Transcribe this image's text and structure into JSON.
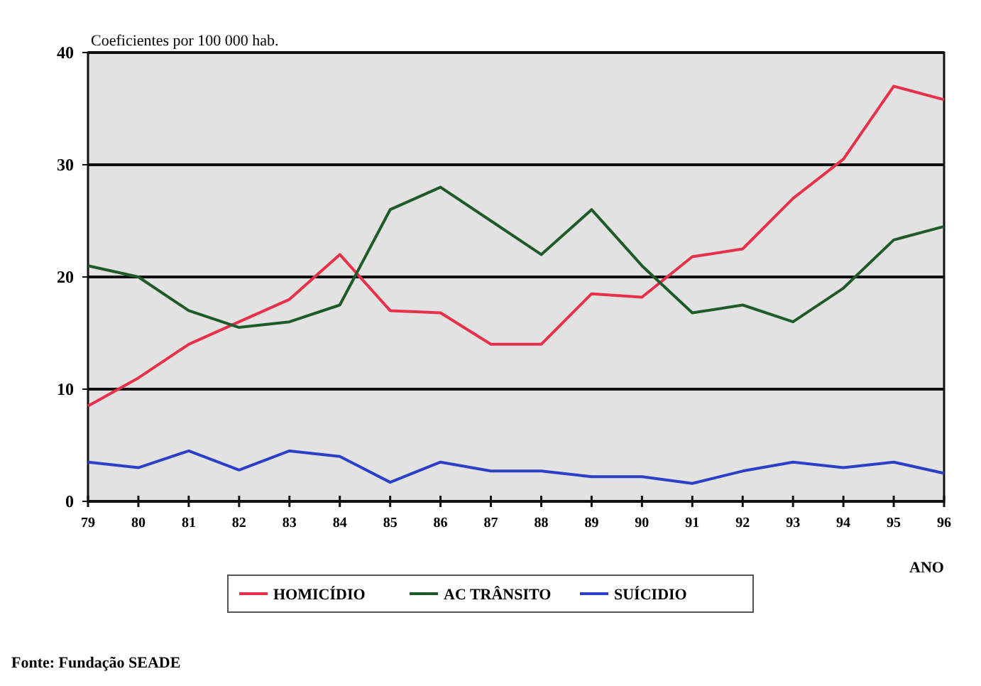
{
  "chart_data": {
    "type": "line",
    "ylabel": "Coeficientes por 100 000 hab.",
    "xlabel": "ANO",
    "categories": [
      "79",
      "80",
      "81",
      "82",
      "83",
      "84",
      "85",
      "86",
      "87",
      "88",
      "89",
      "90",
      "91",
      "92",
      "93",
      "94",
      "95",
      "96"
    ],
    "series": [
      {
        "name": "HOMICÍDIO",
        "color": "#e8304a",
        "values": [
          8.5,
          11,
          14,
          16,
          18,
          22,
          17,
          16.8,
          14,
          14,
          18.5,
          18.2,
          21.8,
          22.5,
          27,
          30.5,
          37,
          35.8
        ]
      },
      {
        "name": "AC TRÂNSITO",
        "color": "#1f5a2a",
        "values": [
          21,
          20,
          17,
          15.5,
          16,
          17.5,
          26,
          28,
          25,
          22,
          26,
          21,
          16.8,
          17.5,
          16,
          19,
          23.3,
          24.5
        ]
      },
      {
        "name": "SUÍCIDIO",
        "color": "#2b3fc8",
        "values": [
          3.5,
          3,
          4.5,
          2.8,
          4.5,
          4,
          1.7,
          3.5,
          2.7,
          2.7,
          2.2,
          2.2,
          1.6,
          2.7,
          3.5,
          3,
          3.5,
          2.5
        ]
      }
    ],
    "ylim": [
      0,
      40
    ],
    "yticks": [
      0,
      10,
      20,
      30,
      40
    ],
    "grid": "y",
    "legend": "bottom",
    "annotations": [
      "Fonte: Fundação SEADE"
    ]
  }
}
